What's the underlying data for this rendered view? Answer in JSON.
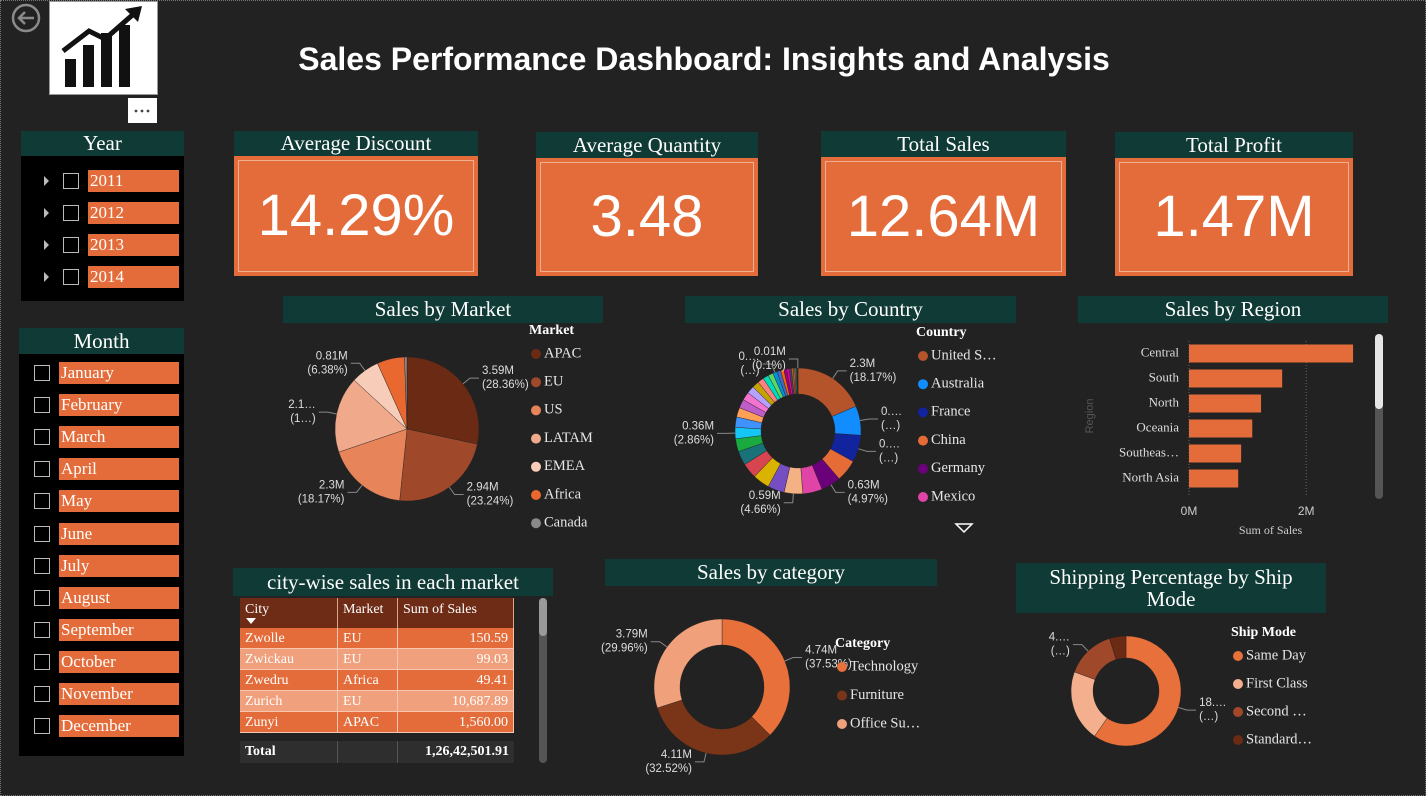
{
  "header": {
    "title": "Sales Performance Dashboard: Insights and Analysis"
  },
  "slicers": [
    {
      "title": "Year",
      "items": [
        "2011",
        "2012",
        "2013",
        "2014"
      ]
    },
    {
      "title": "Month",
      "items": [
        "January",
        "February",
        "March",
        "April",
        "May",
        "June",
        "July",
        "August",
        "September",
        "October",
        "November",
        "December"
      ]
    }
  ],
  "kpis": [
    {
      "title": "Average Discount",
      "value": "14.29%"
    },
    {
      "title": "Average Quantity",
      "value": "3.48"
    },
    {
      "title": "Total Sales",
      "value": "12.64M"
    },
    {
      "title": "Total Profit",
      "value": "1.47M"
    }
  ],
  "chart_data": [
    {
      "type": "pie",
      "title": "Sales by Market",
      "legend_title": "Market",
      "categories": [
        "APAC",
        "EU",
        "US",
        "LATAM",
        "EMEA",
        "Africa",
        "Canada"
      ],
      "values": [
        3.59,
        2.94,
        2.3,
        2.16,
        0.81,
        0.78,
        0.07
      ],
      "value_labels": [
        "3.59M",
        "2.94M",
        "2.3M",
        "2.1…",
        "0.81M",
        null,
        null
      ],
      "percent_labels": [
        "(28.36%)",
        "(23.24%)",
        "(18.17%)",
        "(1…)",
        "(6.38%)",
        null,
        null
      ],
      "colors": [
        "#6b2a14",
        "#a0482a",
        "#e8845a",
        "#f0a98a",
        "#f7cdb9",
        "#e8682f",
        "#8a8a8a"
      ]
    },
    {
      "type": "donut",
      "title": "Sales by Country",
      "legend_title": "Country",
      "categories": [
        "United S…",
        "Australia",
        "France",
        "China",
        "Germany",
        "Mexico",
        null,
        null,
        null,
        null,
        null,
        null,
        null,
        null,
        null,
        null,
        null,
        null,
        null,
        null,
        null,
        null,
        null,
        null,
        null,
        null,
        null,
        null,
        null,
        null,
        null,
        null,
        null,
        null
      ],
      "values": [
        2.3,
        0.93,
        0.86,
        0.7,
        0.63,
        0.62,
        0.59,
        0.53,
        0.53,
        0.49,
        0.45,
        0.41,
        0.36,
        0.33,
        0.3,
        0.28,
        0.26,
        0.24,
        0.22,
        0.2,
        0.18,
        0.16,
        0.14,
        0.12,
        0.1,
        0.09,
        0.08,
        0.07,
        0.06,
        0.05,
        0.04,
        0.03,
        0.02,
        0.01
      ],
      "value_labels": [
        "2.3M",
        "0.…",
        "0.…",
        null,
        "0.63M",
        null,
        "0.59M",
        null,
        null,
        null,
        null,
        null,
        "0.36M",
        null,
        null,
        null,
        null,
        null,
        null,
        null,
        null,
        null,
        "0.…",
        null,
        null,
        null,
        null,
        null,
        null,
        null,
        null,
        null,
        null,
        "0.01M"
      ],
      "percent_labels": [
        "(18.17%)",
        "(…)",
        "(…)",
        null,
        "(4.97%)",
        null,
        "(4.66%)",
        null,
        null,
        null,
        null,
        null,
        "(2.86%)",
        null,
        null,
        null,
        null,
        null,
        null,
        null,
        null,
        null,
        "(…)",
        null,
        null,
        null,
        null,
        null,
        null,
        null,
        null,
        null,
        null,
        "(0.1%)"
      ],
      "colors": [
        "#b5532a",
        "#118dff",
        "#12239e",
        "#e66c37",
        "#6b007b",
        "#e044a7",
        "#f4b183",
        "#744ec2",
        "#d9b300",
        "#d64550",
        "#197278",
        "#1aab40",
        "#15c6f4",
        "#4092ff",
        "#ffa058",
        "#be5dc9",
        "#f472d0",
        "#b5a1ff",
        "#c4a200",
        "#ff8080",
        "#00dbbc",
        "#5bd667",
        "#0091d5",
        "#4668c5",
        "#ff6300",
        "#99008a",
        "#ec008c",
        "#533285",
        "#99700a",
        "#ff4141",
        "#1f9a85",
        "#25891c",
        "#0057a2",
        "#8c8c8c"
      ]
    },
    {
      "type": "bar",
      "orientation": "horizontal",
      "title": "Sales by Region",
      "categories": [
        "Central",
        "South",
        "North",
        "Oceania",
        "Southeas…",
        "North Asia"
      ],
      "values": [
        2.8,
        1.59,
        1.23,
        1.08,
        0.89,
        0.84
      ],
      "color": "#e46c3a",
      "xlim": [
        0,
        2.85
      ],
      "xticks": [
        {
          "value": 0,
          "label": "0M"
        },
        {
          "value": 2,
          "label": "2M"
        }
      ],
      "x_label": "Sum of Sales",
      "y_label": "Region",
      "grid": true
    },
    {
      "type": "donut",
      "title": "Sales by category",
      "legend_title": "Category",
      "categories": [
        "Technology",
        "Furniture",
        "Office Su…"
      ],
      "values": [
        4.74,
        4.11,
        3.79
      ],
      "value_labels": [
        "4.74M",
        "4.11M",
        "3.79M"
      ],
      "percent_labels": [
        "(37.53%)",
        "(32.52%)",
        "(29.96%)"
      ],
      "colors": [
        "#e8703a",
        "#7a3418",
        "#f0a07a"
      ]
    },
    {
      "type": "donut",
      "title": "Shipping Percentage by Ship Mode",
      "legend_title": "Ship Mode",
      "categories": [
        "Same Day",
        "First Class",
        "Second …",
        "Standard…"
      ],
      "values": [
        18.5,
        6.5,
        4.5,
        1.5
      ],
      "value_labels": [
        "18.…",
        null,
        "4.…",
        null
      ],
      "percent_labels": [
        "(…)",
        null,
        "(…)",
        null
      ],
      "colors": [
        "#e8703a",
        "#f4b08e",
        "#a0482a",
        "#6b2a14"
      ]
    }
  ],
  "table": {
    "title": "city-wise sales in each market",
    "columns": [
      "City",
      "Market",
      "Sum of Sales"
    ],
    "rows": [
      [
        "Zwolle",
        "EU",
        "150.59"
      ],
      [
        "Zwickau",
        "EU",
        "99.03"
      ],
      [
        "Zwedru",
        "Africa",
        "49.41"
      ],
      [
        "Zurich",
        "EU",
        "10,687.89"
      ],
      [
        "Zunyi",
        "APAC",
        "1,560.00"
      ]
    ],
    "total": {
      "label": "Total",
      "value": "1,26,42,501.91"
    }
  }
}
